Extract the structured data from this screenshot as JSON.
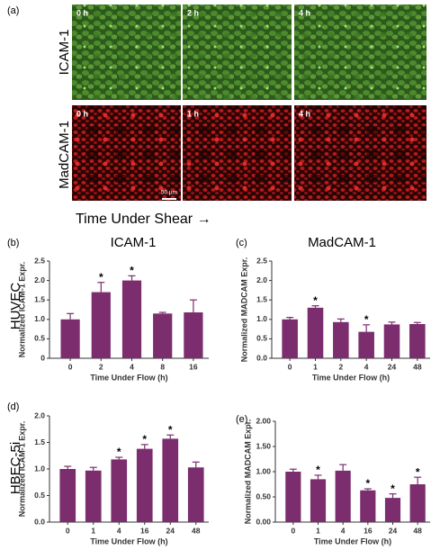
{
  "figure": {
    "panel": "(a)",
    "row_labels": [
      "ICAM-1",
      "MadCAM-1"
    ],
    "time_labels": [
      [
        "0 h",
        "2 h",
        "4 h"
      ],
      [
        "0 h",
        "1 h",
        "4 h"
      ]
    ],
    "scale_bar": "50 µm",
    "xlabel": "Time Under Shear →"
  },
  "chart_data": [
    {
      "type": "bar",
      "panel": "(b)",
      "row_label": "HUVEC",
      "title": "ICAM-1",
      "ylabel": "Normalized ICAM-1 Expr.",
      "xlabel": "Time Under Flow (h)",
      "color": "#7b2d6e",
      "categories": [
        "0",
        "2",
        "4",
        "8",
        "16"
      ],
      "values": [
        1.0,
        1.7,
        2.0,
        1.15,
        1.18
      ],
      "errors": [
        0.15,
        0.25,
        0.12,
        0.03,
        0.32
      ],
      "significant": [
        false,
        true,
        true,
        false,
        false
      ],
      "marker": "*",
      "ylim": [
        0,
        2.5
      ],
      "yticks": [
        0,
        0.5,
        {
          "value": 1,
          "label": "1.0"
        },
        1.5,
        {
          "value": 2,
          "label": "2.0"
        },
        2.5
      ]
    },
    {
      "type": "bar",
      "panel": "(c)",
      "title": "MadCAM-1",
      "ylabel": "Normalized MADCAM Expr.",
      "xlabel": "Time Under Flow (h)",
      "color": "#7b2d6e",
      "categories": [
        "0",
        "1",
        "2",
        "4",
        "24",
        "48"
      ],
      "values": [
        1.0,
        1.3,
        0.93,
        0.68,
        0.87,
        0.88
      ],
      "errors": [
        0.05,
        0.05,
        0.08,
        0.18,
        0.06,
        0.04
      ],
      "significant": [
        false,
        true,
        false,
        true,
        false,
        false
      ],
      "marker": "*",
      "ylim": [
        0,
        2.5
      ],
      "yticks": [
        {
          "value": 0,
          "label": "0.0"
        },
        0.5,
        {
          "value": 1,
          "label": "1.0"
        },
        1.5,
        {
          "value": 2,
          "label": "2.0"
        },
        2.5
      ]
    },
    {
      "type": "bar",
      "panel": "(d)",
      "row_label": "HBEC-5i",
      "ylabel": "Normalized ICAM-1 Expr.",
      "xlabel": "Time Under Flow (h)",
      "color": "#7b2d6e",
      "categories": [
        "0",
        "1",
        "4",
        "16",
        "24",
        "48"
      ],
      "values": [
        1.0,
        0.97,
        1.18,
        1.38,
        1.57,
        1.03
      ],
      "errors": [
        0.05,
        0.06,
        0.04,
        0.08,
        0.07,
        0.1
      ],
      "significant": [
        false,
        false,
        true,
        true,
        true,
        false
      ],
      "marker": "*",
      "ylim": [
        0,
        2
      ],
      "yticks": [
        {
          "value": 0,
          "label": "0.0"
        },
        0.5,
        {
          "value": 1,
          "label": "1.0"
        },
        1.5,
        {
          "value": 2,
          "label": "2.0"
        }
      ]
    },
    {
      "type": "bar",
      "panel": "(e)",
      "ylabel": "Normalized MADCAM Expr.",
      "xlabel": "Time Under Flow (h)",
      "color": "#7b2d6e",
      "categories": [
        "0",
        "1",
        "4",
        "16",
        "24",
        "48"
      ],
      "values": [
        1.0,
        0.85,
        1.02,
        0.63,
        0.48,
        0.75
      ],
      "errors": [
        0.05,
        0.08,
        0.12,
        0.03,
        0.08,
        0.14
      ],
      "significant": [
        false,
        true,
        false,
        true,
        true,
        true
      ],
      "marker": "*",
      "ylim": [
        0,
        2
      ],
      "yticks": [
        {
          "value": 0,
          "label": "0.00"
        },
        {
          "value": 0.5,
          "label": "0.50"
        },
        {
          "value": 1,
          "label": "1.00"
        },
        {
          "value": 1.5,
          "label": "1.50"
        },
        {
          "value": 2,
          "label": "2.00"
        }
      ]
    }
  ]
}
